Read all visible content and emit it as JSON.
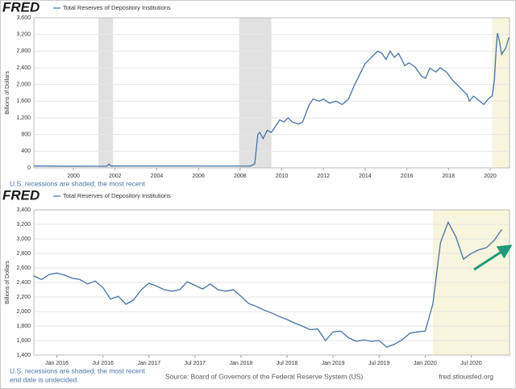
{
  "chart_data": [
    {
      "type": "line",
      "logo": "FRED",
      "y_label": "Billions of Dollars",
      "series": [
        {
          "name": "Total Reserves of Depository Institutions",
          "color": "#4572a7",
          "x": [
            1998.1,
            2000,
            2001.6,
            2001.7,
            2001.8,
            2004,
            2006,
            2008.5,
            2008.7,
            2008.85,
            2008.95,
            2009.1,
            2009.2,
            2009.3,
            2009.5,
            2009.7,
            2009.9,
            2010.1,
            2010.3,
            2010.5,
            2010.8,
            2011.0,
            2011.3,
            2011.5,
            2011.8,
            2012.0,
            2012.3,
            2012.6,
            2012.9,
            2013.2,
            2013.5,
            2013.8,
            2014.0,
            2014.3,
            2014.6,
            2014.8,
            2015.0,
            2015.2,
            2015.4,
            2015.6,
            2015.9,
            2016.1,
            2016.4,
            2016.7,
            2016.9,
            2017.1,
            2017.4,
            2017.6,
            2017.9,
            2018.2,
            2018.6,
            2018.9,
            2019.0,
            2019.2,
            2019.5,
            2019.7,
            2019.9,
            2020.1,
            2020.2,
            2020.3,
            2020.35,
            2020.45,
            2020.55,
            2020.75,
            2020.9
          ],
          "values": [
            45,
            40,
            42,
            90,
            45,
            45,
            43,
            45,
            100,
            800,
            850,
            700,
            800,
            900,
            850,
            1000,
            1150,
            1100,
            1200,
            1100,
            1050,
            1100,
            1500,
            1650,
            1600,
            1650,
            1550,
            1600,
            1520,
            1650,
            2000,
            2300,
            2500,
            2650,
            2800,
            2750,
            2600,
            2800,
            2650,
            2750,
            2450,
            2520,
            2420,
            2200,
            2150,
            2390,
            2300,
            2400,
            2300,
            2100,
            1900,
            1750,
            1600,
            1720,
            1600,
            1520,
            1650,
            1730,
            2100,
            2950,
            3230,
            3030,
            2720,
            2880,
            3130
          ]
        }
      ],
      "xlim": [
        1998.1,
        2020.93
      ],
      "xticks": [
        2000,
        2002,
        2004,
        2006,
        2008,
        2010,
        2012,
        2014,
        2016,
        2018,
        2020
      ],
      "ylim": [
        0,
        3600
      ],
      "yticks": [
        0,
        400,
        800,
        {
          "value": 1200,
          "label": "1,200"
        },
        {
          "value": 1600,
          "label": "1,600"
        },
        {
          "value": 2000,
          "label": "2,000"
        },
        {
          "value": 2400,
          "label": "2,400"
        },
        {
          "value": 2800,
          "label": "2,800"
        },
        {
          "value": 3200,
          "label": "3,200"
        },
        {
          "value": 3600,
          "label": "3,600"
        }
      ],
      "grid": true,
      "recessions": [
        {
          "start": 2001.2,
          "end": 2001.9,
          "color": "#e1e1e1"
        },
        {
          "start": 2007.95,
          "end": 2009.5,
          "color": "#e1e1e1"
        },
        {
          "start": 2020.1,
          "end": 2020.93,
          "color": "#f7f5dc"
        }
      ],
      "note": [
        "U.S. recessions are shaded; the most recent"
      ]
    },
    {
      "type": "line",
      "logo": "FRED",
      "y_label": "Billions of Dollars",
      "series": [
        {
          "name": "Total Reserves of Depository Institutions",
          "color": "#4572a7",
          "x": [
            "2015-10",
            "2015-11",
            "2015-12",
            "2016-01",
            "2016-02",
            "2016-03",
            "2016-04",
            "2016-05",
            "2016-06",
            "2016-07",
            "2016-08",
            "2016-09",
            "2016-10",
            "2016-11",
            "2016-12",
            "2017-01",
            "2017-02",
            "2017-03",
            "2017-04",
            "2017-05",
            "2017-06",
            "2017-07",
            "2017-08",
            "2017-09",
            "2017-10",
            "2017-11",
            "2017-12",
            "2018-01",
            "2018-02",
            "2018-03",
            "2018-04",
            "2018-05",
            "2018-06",
            "2018-07",
            "2018-08",
            "2018-09",
            "2018-10",
            "2018-11",
            "2018-12",
            "2019-01",
            "2019-02",
            "2019-03",
            "2019-04",
            "2019-05",
            "2019-06",
            "2019-07",
            "2019-08",
            "2019-09",
            "2019-10",
            "2019-11",
            "2019-12",
            "2020-01",
            "2020-02",
            "2020-03",
            "2020-04",
            "2020-05",
            "2020-06",
            "2020-07",
            "2020-08",
            "2020-09",
            "2020-10",
            "2020-11"
          ],
          "values": [
            2490,
            2440,
            2510,
            2530,
            2500,
            2460,
            2440,
            2380,
            2420,
            2330,
            2170,
            2210,
            2100,
            2160,
            2300,
            2390,
            2350,
            2300,
            2280,
            2300,
            2410,
            2360,
            2310,
            2380,
            2300,
            2280,
            2300,
            2210,
            2110,
            2070,
            2020,
            1980,
            1930,
            1890,
            1840,
            1800,
            1750,
            1760,
            1600,
            1720,
            1730,
            1640,
            1590,
            1610,
            1590,
            1600,
            1510,
            1550,
            1610,
            1700,
            1720,
            1730,
            2100,
            2950,
            3230,
            3030,
            2720,
            2800,
            2850,
            2880,
            2980,
            3130
          ]
        }
      ],
      "xlim": [
        "2015-10",
        "2020-12"
      ],
      "xticks": [
        {
          "value": "2016-01",
          "label": "Jan 2016"
        },
        {
          "value": "2016-07",
          "label": "Jul 2016"
        },
        {
          "value": "2017-01",
          "label": "Jan 2017"
        },
        {
          "value": "2017-07",
          "label": "Jul 2017"
        },
        {
          "value": "2018-01",
          "label": "Jan 2018"
        },
        {
          "value": "2018-07",
          "label": "Jul 2018"
        },
        {
          "value": "2019-01",
          "label": "Jan 2019"
        },
        {
          "value": "2019-07",
          "label": "Jul 2019"
        },
        {
          "value": "2020-01",
          "label": "Jan 2020"
        },
        {
          "value": "2020-07",
          "label": "Jul 2020"
        }
      ],
      "ylim": [
        1400,
        3400
      ],
      "yticks": [
        {
          "value": 1400,
          "label": "1,400"
        },
        {
          "value": 1600,
          "label": "1,600"
        },
        {
          "value": 1800,
          "label": "1,800"
        },
        {
          "value": 2000,
          "label": "2,000"
        },
        {
          "value": 2200,
          "label": "2,200"
        },
        {
          "value": 2400,
          "label": "2,400"
        },
        {
          "value": 2600,
          "label": "2,600"
        },
        {
          "value": 2800,
          "label": "2,800"
        },
        {
          "value": 3000,
          "label": "3,000"
        },
        {
          "value": 3200,
          "label": "3,200"
        },
        {
          "value": 3400,
          "label": "3,400"
        }
      ],
      "grid": true,
      "recessions": [
        {
          "start": "2020-02",
          "end": "2020-12",
          "color": "#f7f5dc"
        }
      ],
      "note": [
        "U.S. recessions are shaded; the most recent",
        "end date is undecided."
      ],
      "source": "Source: Board of Governors of the Federal Reserve System (US)",
      "site": "fred.stlouisfed.org"
    }
  ]
}
